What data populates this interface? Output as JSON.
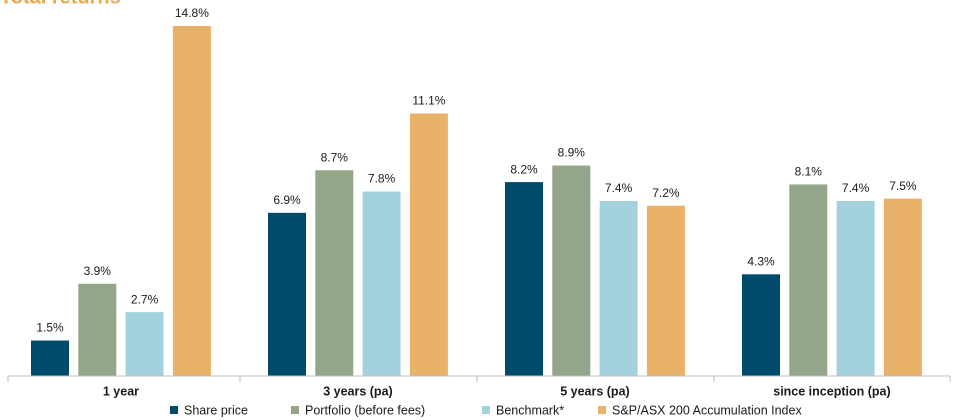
{
  "chart_data": {
    "type": "bar",
    "title": "Total returns",
    "categories": [
      "1 year",
      "3 years (pa)",
      "5 years (pa)",
      "since inception (pa)"
    ],
    "series": [
      {
        "name": "Share price",
        "color": "#004b6b",
        "values": [
          1.5,
          6.9,
          8.2,
          4.3
        ],
        "value_labels": [
          "1.5%",
          "6.9%",
          "8.2%",
          "4.3%"
        ]
      },
      {
        "name": "Portfolio (before fees)",
        "color": "#93a68a",
        "values": [
          3.9,
          8.7,
          8.9,
          8.1
        ],
        "value_labels": [
          "3.9%",
          "8.7%",
          "8.9%",
          "8.1%"
        ]
      },
      {
        "name": "Benchmark*",
        "color": "#a3d2de",
        "values": [
          2.7,
          7.8,
          7.4,
          7.4
        ],
        "value_labels": [
          "2.7%",
          "7.8%",
          "7.4%",
          "7.4%"
        ]
      },
      {
        "name": "S&P/ASX 200 Accumulation Index",
        "color": "#e8b268",
        "values": [
          14.8,
          11.1,
          7.2,
          7.5
        ],
        "value_labels": [
          "14.8%",
          "11.1%",
          "7.2%",
          "7.5%"
        ]
      }
    ],
    "legend": "bottom"
  }
}
